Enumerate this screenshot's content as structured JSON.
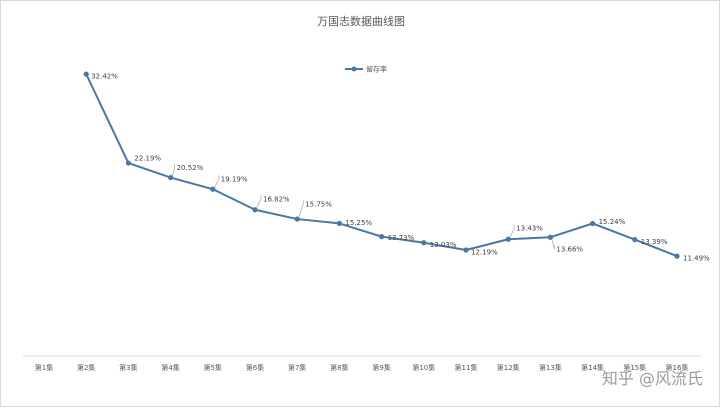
{
  "chart_data": {
    "type": "line",
    "title": "万国志数据曲线图",
    "xlabel": "",
    "ylabel": "",
    "legend_position": "top-center",
    "grid": false,
    "ylim": [
      0,
      36
    ],
    "categories": [
      "第1集",
      "第2集",
      "第3集",
      "第4集",
      "第5集",
      "第6集",
      "第7集",
      "第8集",
      "第9集",
      "第10集",
      "第11集",
      "第12集",
      "第13集",
      "第14集",
      "第15集",
      "第16集"
    ],
    "series": [
      {
        "name": "留存率",
        "color": "#4a78a2",
        "values": [
          null,
          32.42,
          22.19,
          20.52,
          19.19,
          16.82,
          15.75,
          15.25,
          13.73,
          13.03,
          12.19,
          13.43,
          13.66,
          15.24,
          13.39,
          11.49
        ],
        "labels": [
          "",
          "32.42%",
          "22.19%",
          "20.52%",
          "19.19%",
          "16.82%",
          "15.75%",
          "15.25%",
          "13.73%",
          "13.03%",
          "12.19%",
          "13.43%",
          "13.66%",
          "15.24%",
          "13.39%",
          "11.49%"
        ]
      }
    ]
  },
  "watermark": {
    "text": "知乎 @风流氏"
  }
}
